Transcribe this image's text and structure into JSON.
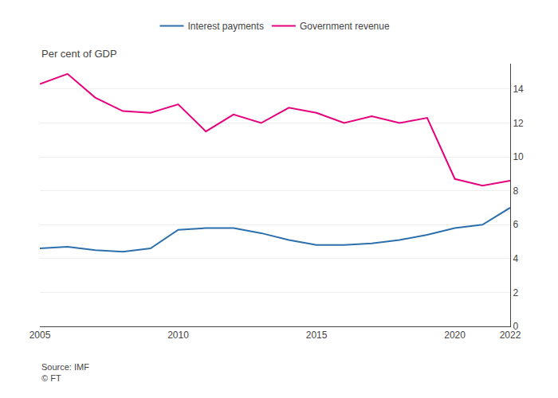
{
  "chart_data": {
    "type": "line",
    "ylabel": "Per cent of GDP",
    "annotations": [
      "Source: IMF\n© FT"
    ],
    "x": [
      2005,
      2006,
      2007,
      2008,
      2009,
      2010,
      2011,
      2012,
      2013,
      2014,
      2015,
      2016,
      2017,
      2018,
      2019,
      2020,
      2021,
      2022
    ],
    "series": [
      {
        "name": "Interest payments",
        "color": "#2c6fad",
        "values": [
          4.6,
          4.7,
          4.5,
          4.4,
          4.6,
          5.7,
          5.8,
          5.8,
          5.5,
          5.1,
          4.8,
          4.8,
          4.9,
          5.1,
          5.4,
          5.8,
          6.0,
          7.0
        ]
      },
      {
        "name": "Government revenue",
        "color": "#e6007e",
        "values": [
          14.3,
          14.9,
          13.5,
          12.7,
          12.6,
          13.1,
          11.5,
          12.5,
          12.0,
          12.9,
          12.6,
          12.0,
          12.4,
          12.0,
          12.3,
          8.7,
          8.3,
          8.6
        ]
      }
    ],
    "xlim": [
      2005,
      2022
    ],
    "xticks": [
      2005,
      2010,
      2015,
      2020,
      2022
    ],
    "ylim": [
      0,
      15.5
    ],
    "yticks": [
      0,
      2,
      4,
      6,
      8,
      10,
      12,
      14
    ],
    "grid": true,
    "legend": "top"
  }
}
